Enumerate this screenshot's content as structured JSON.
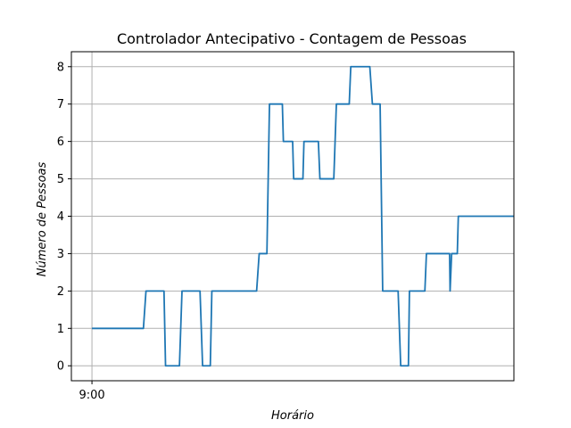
{
  "chart_data": {
    "type": "line",
    "title": "Controlador Antecipativo - Contagem de Pessoas",
    "xlabel": "Horário",
    "ylabel": "Número de Pessoas",
    "x_tick_labels": [
      {
        "x": 0,
        "label": "9:00"
      }
    ],
    "y_ticks": [
      0,
      1,
      2,
      3,
      4,
      5,
      6,
      7,
      8
    ],
    "xlim": [
      -4,
      82
    ],
    "ylim": [
      -0.4,
      8.4
    ],
    "grid": true,
    "line_color": "#1f77b4",
    "series": [
      {
        "x": [
          0,
          10,
          10.5,
          14,
          14.3,
          17,
          17.5,
          21,
          21.5,
          23,
          23.3,
          32,
          32.5,
          34,
          34.5,
          37,
          37.2,
          39,
          39.2,
          41,
          41.2,
          44,
          44.3,
          47,
          47.5,
          50,
          50.3,
          54,
          54.5,
          56,
          56.5,
          59.5,
          60,
          61.5,
          61.7,
          62,
          63,
          63.3,
          64.5,
          64.7,
          65,
          67,
          67.2,
          69.5,
          69.6,
          69.9,
          70,
          71,
          71.2,
          82
        ],
        "y": [
          1,
          1,
          2,
          2,
          0,
          0,
          2,
          2,
          0,
          0,
          2,
          2,
          3,
          3,
          7,
          7,
          6,
          6,
          5,
          5,
          6,
          6,
          5,
          5,
          7,
          7,
          8,
          8,
          7,
          7,
          2,
          2,
          0,
          0,
          2,
          2,
          2,
          2,
          2,
          2,
          3,
          3,
          3,
          3,
          2,
          3,
          3,
          3,
          4,
          4
        ]
      }
    ]
  }
}
